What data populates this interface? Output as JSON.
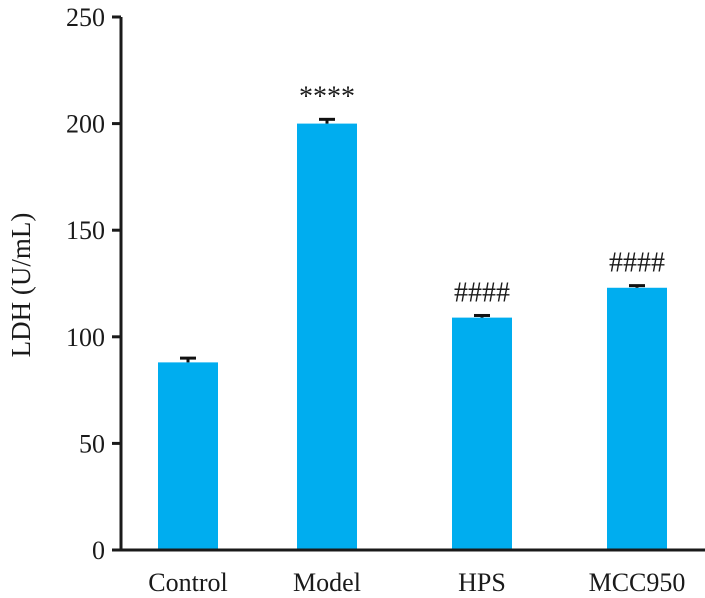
{
  "chart_data": {
    "type": "bar",
    "title": "",
    "xlabel": "",
    "ylabel": "LDH (U/mL)",
    "ylim": [
      0,
      250
    ],
    "yticks": [
      0,
      50,
      100,
      150,
      200,
      250
    ],
    "categories": [
      "Control",
      "Model",
      "HPS",
      "MCC950"
    ],
    "values": [
      88,
      200,
      109,
      123
    ],
    "errors": [
      2,
      2,
      1,
      1
    ],
    "annotations": [
      "",
      "****",
      "####",
      "####"
    ],
    "bar_color": "#00adef",
    "error_color": "#111111",
    "axis_color": "#1a1a1a",
    "grid": false
  }
}
